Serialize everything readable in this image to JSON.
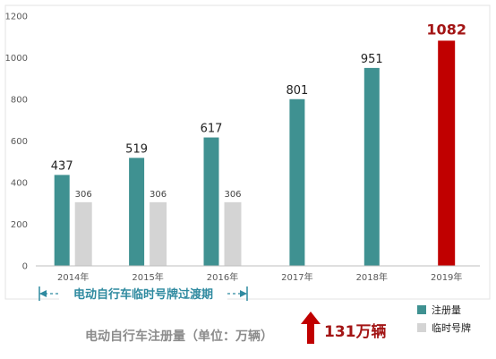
{
  "chart_data": {
    "type": "bar",
    "categories": [
      "2014年",
      "2015年",
      "2016年",
      "2017年",
      "2018年",
      "2019年"
    ],
    "series": [
      {
        "name": "注册量",
        "values": [
          437,
          519,
          617,
          801,
          951,
          1082
        ],
        "labels": [
          "437",
          "519",
          "617",
          "801",
          "951",
          "1082"
        ],
        "color": "#3f9191",
        "highlight_color": "#c00000",
        "highlight_index": 5
      },
      {
        "name": "临时号牌",
        "values": [
          306,
          306,
          306,
          null,
          null,
          null
        ],
        "labels": [
          "306",
          "306",
          "306",
          "",
          "",
          ""
        ],
        "color": "#d4d4d4"
      }
    ],
    "ylim": [
      0,
      1200
    ],
    "yticks": [
      "0",
      "200",
      "400",
      "600",
      "800",
      "1000",
      "1200"
    ],
    "ytick_values": [
      0,
      200,
      400,
      600,
      800,
      1000,
      1200
    ],
    "grid": false,
    "legend_position": "bottom-right",
    "annotations": {
      "period_label": "电动自行车临时号牌过渡期",
      "caption": "电动自行车注册量（单位：万辆）",
      "growth_label": "131万辆"
    }
  },
  "colors": {
    "axis": "#bfbfbf",
    "period_bracket": "#2f8aa0",
    "arrow": "#c00000",
    "frame": "#e3e3e3"
  }
}
